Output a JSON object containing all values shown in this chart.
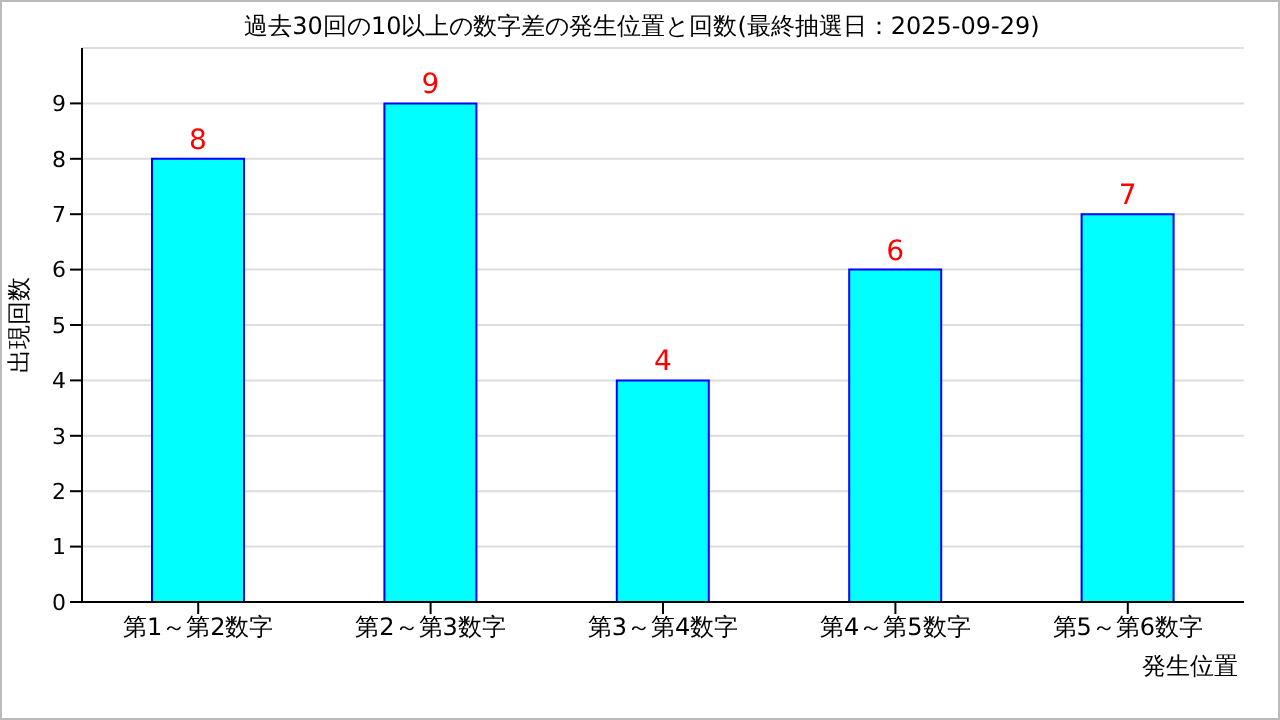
{
  "chart_data": {
    "type": "bar",
    "title": "過去30回の10以上の数字差の発生位置と回数(最終抽選日：2025-09-29)",
    "xlabel": "発生位置",
    "ylabel": "出現回数",
    "categories": [
      "第1～第2数字",
      "第2～第3数字",
      "第3～第4数字",
      "第4～第5数字",
      "第5～第6数字"
    ],
    "values": [
      8,
      9,
      4,
      6,
      7
    ],
    "color": "#00ffff",
    "data_labels": true,
    "ylim": [
      0,
      10
    ],
    "yticks": [
      0,
      1,
      2,
      3,
      4,
      5,
      6,
      7,
      8,
      9
    ],
    "grid": "y"
  }
}
